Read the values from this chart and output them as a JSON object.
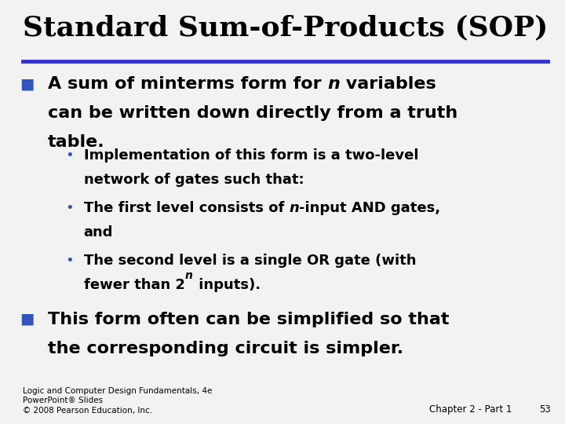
{
  "title": "Standard Sum-of-Products (SOP)",
  "title_fontsize": 26,
  "title_color": "#000000",
  "rule_color": "#3333cc",
  "rule_thickness": 3.5,
  "background_color": "#f2f2f2",
  "bullet_color": "#3355bb",
  "bullet1_marker": "■",
  "bullet2_marker": "•",
  "b1_fs": 16,
  "b2_fs": 13,
  "footer_left": "Logic and Computer Design Fundamentals, 4e\nPowerPoint® Slides\n© 2008 Pearson Education, Inc.",
  "footer_right1": "Chapter 2 - Part 1",
  "footer_right2": "53",
  "footer_fontsize": 7.5
}
